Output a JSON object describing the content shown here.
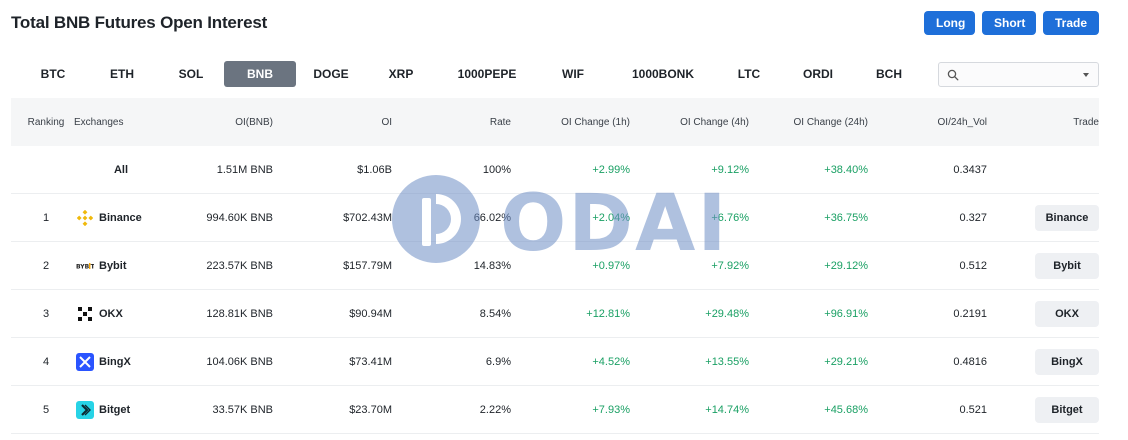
{
  "header": {
    "title": "Total BNB Futures Open Interest",
    "long_label": "Long",
    "short_label": "Short",
    "trade_label": "Trade"
  },
  "tabs": [
    {
      "label": "BTC",
      "active": false
    },
    {
      "label": "ETH",
      "active": false
    },
    {
      "label": "SOL",
      "active": false
    },
    {
      "label": "BNB",
      "active": true
    },
    {
      "label": "DOGE",
      "active": false
    },
    {
      "label": "XRP",
      "active": false
    },
    {
      "label": "1000PEPE",
      "active": false
    },
    {
      "label": "WIF",
      "active": false
    },
    {
      "label": "1000BONK",
      "active": false
    },
    {
      "label": "LTC",
      "active": false
    },
    {
      "label": "ORDI",
      "active": false
    },
    {
      "label": "BCH",
      "active": false
    }
  ],
  "search": {
    "value": ""
  },
  "table": {
    "headers": {
      "rank": "Ranking",
      "exchange": "Exchanges",
      "oi_bnb": "OI(BNB)",
      "oi": "OI",
      "rate": "Rate",
      "ch1": "OI Change (1h)",
      "ch4": "OI Change (4h)",
      "ch24": "OI Change (24h)",
      "vol": "OI/24h_Vol",
      "trade": "Trade"
    },
    "all_row": {
      "label": "All",
      "oi_bnb": "1.51M BNB",
      "oi": "$1.06B",
      "rate": "100%",
      "ch1": "+2.99%",
      "ch4": "+9.12%",
      "ch24": "+38.40%",
      "vol": "0.3437"
    },
    "rows": [
      {
        "rank": "1",
        "exchange": "Binance",
        "logo": "binance-icon",
        "oi_bnb": "994.60K BNB",
        "oi": "$702.43M",
        "rate": "66.02%",
        "ch1": "+2.04%",
        "ch4": "+6.76%",
        "ch24": "+36.75%",
        "vol": "0.327",
        "trade": "Binance"
      },
      {
        "rank": "2",
        "exchange": "Bybit",
        "logo": "bybit-icon",
        "oi_bnb": "223.57K BNB",
        "oi": "$157.79M",
        "rate": "14.83%",
        "ch1": "+0.97%",
        "ch4": "+7.92%",
        "ch24": "+29.12%",
        "vol": "0.512",
        "trade": "Bybit"
      },
      {
        "rank": "3",
        "exchange": "OKX",
        "logo": "okx-icon",
        "oi_bnb": "128.81K BNB",
        "oi": "$90.94M",
        "rate": "8.54%",
        "ch1": "+12.81%",
        "ch4": "+29.48%",
        "ch24": "+96.91%",
        "vol": "0.2191",
        "trade": "OKX"
      },
      {
        "rank": "4",
        "exchange": "BingX",
        "logo": "bingx-icon",
        "oi_bnb": "104.06K BNB",
        "oi": "$73.41M",
        "rate": "6.9%",
        "ch1": "+4.52%",
        "ch4": "+13.55%",
        "ch24": "+29.21%",
        "vol": "0.4816",
        "trade": "BingX"
      },
      {
        "rank": "5",
        "exchange": "Bitget",
        "logo": "bitget-icon",
        "oi_bnb": "33.57K BNB",
        "oi": "$23.70M",
        "rate": "2.22%",
        "ch1": "+7.93%",
        "ch4": "+14.74%",
        "ch24": "+45.68%",
        "vol": "0.521",
        "trade": "Bitget"
      }
    ]
  },
  "watermark": {
    "text": "ODAILY"
  },
  "colors": {
    "accent": "#1e6fd9",
    "positive": "#1aa064",
    "active_tab": "#6b7480",
    "watermark": "#6f8fc6"
  }
}
